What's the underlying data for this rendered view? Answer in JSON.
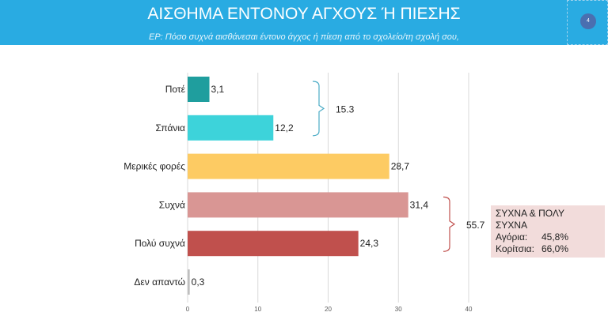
{
  "header": {
    "title": "ΑΙΣΘΗΜΑ ΕΝΤΟΝΟΥ ΑΓΧΟΥΣ Ή ΠΙΕΣΗΣ",
    "subtitle": "ΕΡ: Πόσο συχνά αισθάνεσαι έντονο άγχος ή πίεση από το σχολείο/τη σχολή σου,",
    "page_number": "4"
  },
  "chart_data": {
    "type": "bar",
    "orientation": "horizontal",
    "categories": [
      "Ποτέ",
      "Σπάνια",
      "Μερικές φορές",
      "Συχνά",
      "Πολύ συχνά",
      "Δεν απαντώ"
    ],
    "values": [
      3.1,
      12.2,
      28.7,
      31.4,
      24.3,
      0.3
    ],
    "value_labels": [
      "3,1",
      "12,2",
      "28,7",
      "31,4",
      "24,3",
      "0,3"
    ],
    "colors": [
      "#1f9e9e",
      "#3dd3da",
      "#fdcb63",
      "#d99694",
      "#c0504d",
      "#bfbfbf"
    ],
    "xlim": [
      0,
      40
    ],
    "xticks": [
      "0",
      "10",
      "20",
      "30",
      "40"
    ],
    "grid": true,
    "brackets": [
      {
        "label": "15.3",
        "from": 0,
        "to": 1
      },
      {
        "label": "55.7",
        "from": 3,
        "to": 4
      }
    ]
  },
  "callout": {
    "line1": "ΣΥΧΝΑ & ΠΟΛΥ",
    "line2": "ΣΥΧΝΑ",
    "boys_label": "Αγόρια:",
    "boys_value": "45,8%",
    "girls_label": "Κορίτσια:",
    "girls_value": "66,0%"
  }
}
